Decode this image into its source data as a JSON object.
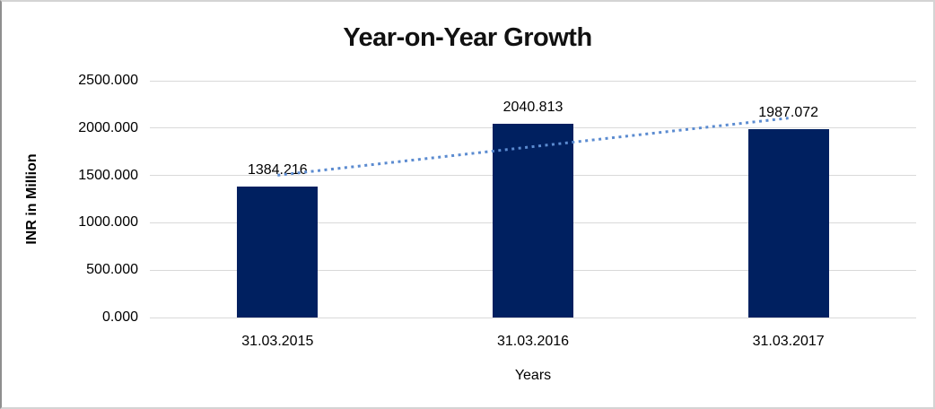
{
  "chart_data": {
    "type": "bar",
    "title": "Year-on-Year Growth",
    "xlabel": "Years",
    "ylabel": "INR in Million",
    "categories": [
      "31.03.2015",
      "31.03.2016",
      "31.03.2017"
    ],
    "series": [
      {
        "name": "INR in Million",
        "values": [
          1384.216,
          2040.813,
          1987.072
        ],
        "data_labels": [
          "1384.216",
          "2040.813",
          "1987.072"
        ],
        "color": "#002060"
      }
    ],
    "ylim": [
      0,
      2500
    ],
    "ytick_step": 500,
    "ytick_labels": [
      "0.000",
      "500.000",
      "1000.000",
      "1500.000",
      "2000.000",
      "2500.000"
    ],
    "grid": true,
    "gridline_color": "#d9d9d9",
    "legend": "none",
    "trendline": {
      "type": "linear",
      "style": "dotted",
      "color": "#5b8bd0",
      "applies_to": "INR in Million"
    }
  }
}
